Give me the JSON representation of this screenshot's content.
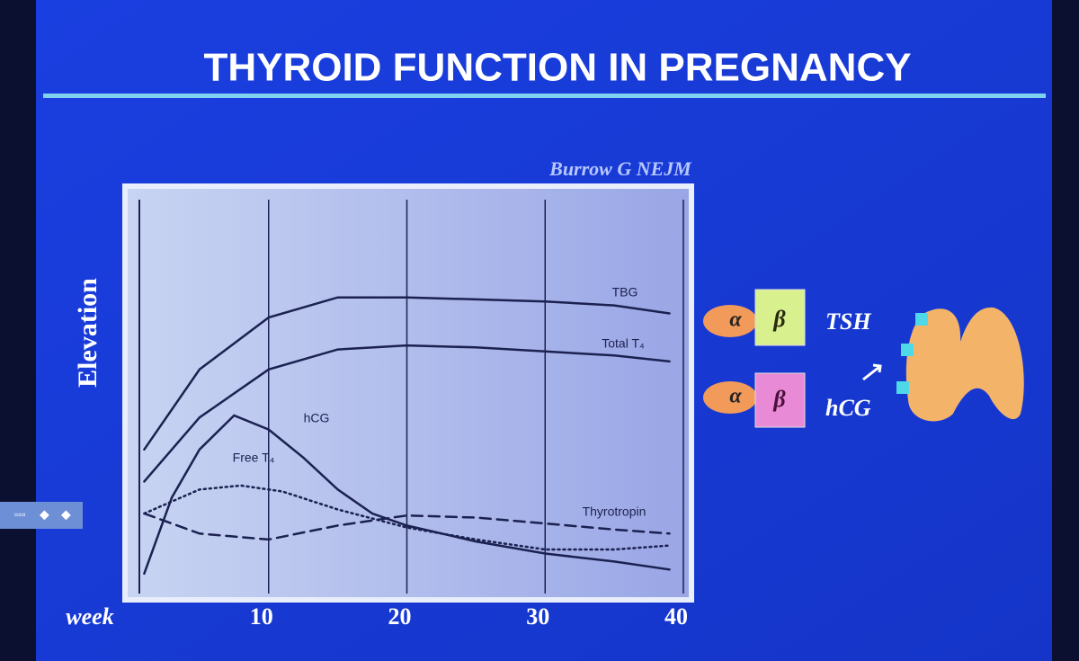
{
  "title": "THYROID FUNCTION IN PREGNANCY",
  "chart_data": {
    "type": "line",
    "source": "Burrow G NEJM",
    "y_label": "Elevation",
    "x_label": "week",
    "xlim": [
      0,
      40
    ],
    "xticks": [
      10,
      20,
      30,
      40
    ],
    "ylim": [
      0,
      100
    ],
    "grid": true,
    "series": [
      {
        "name": "TBG",
        "color": "#1b2150",
        "style": "solid",
        "x": [
          1,
          5,
          10,
          15,
          20,
          25,
          30,
          35,
          39
        ],
        "values": [
          36,
          56,
          69,
          74,
          74,
          73.5,
          73,
          72,
          70
        ]
      },
      {
        "name": "Total T₄",
        "color": "#1b2150",
        "style": "solid",
        "x": [
          1,
          5,
          10,
          15,
          20,
          25,
          30,
          35,
          39
        ],
        "values": [
          28,
          44,
          56,
          61,
          62,
          61.5,
          60.5,
          59.5,
          58
        ]
      },
      {
        "name": "hCG",
        "color": "#1b2150",
        "style": "solid",
        "x": [
          1,
          3,
          5,
          7.5,
          10,
          12.5,
          15,
          17.5,
          20,
          25,
          30,
          35,
          39
        ],
        "values": [
          5,
          24,
          36,
          44.5,
          41,
          34,
          26,
          20,
          17,
          13,
          10,
          8,
          6
        ]
      },
      {
        "name": "Free T₄",
        "color": "#1b2150",
        "style": "dotted",
        "x": [
          1,
          5,
          8,
          11,
          15,
          20,
          25,
          30,
          35,
          39
        ],
        "values": [
          20,
          26,
          27,
          25.5,
          21,
          16.5,
          13.5,
          11,
          11,
          12
        ]
      },
      {
        "name": "Thyrotropin",
        "color": "#1b2150",
        "style": "dashed",
        "x": [
          1,
          5,
          10,
          15,
          20,
          25,
          30,
          35,
          39
        ],
        "values": [
          20,
          15,
          13.5,
          17,
          19.5,
          19,
          17.5,
          16,
          15
        ]
      }
    ]
  },
  "diagram": {
    "alpha": "α",
    "beta": "β",
    "tsh": "TSH",
    "hcg": "hCG"
  }
}
